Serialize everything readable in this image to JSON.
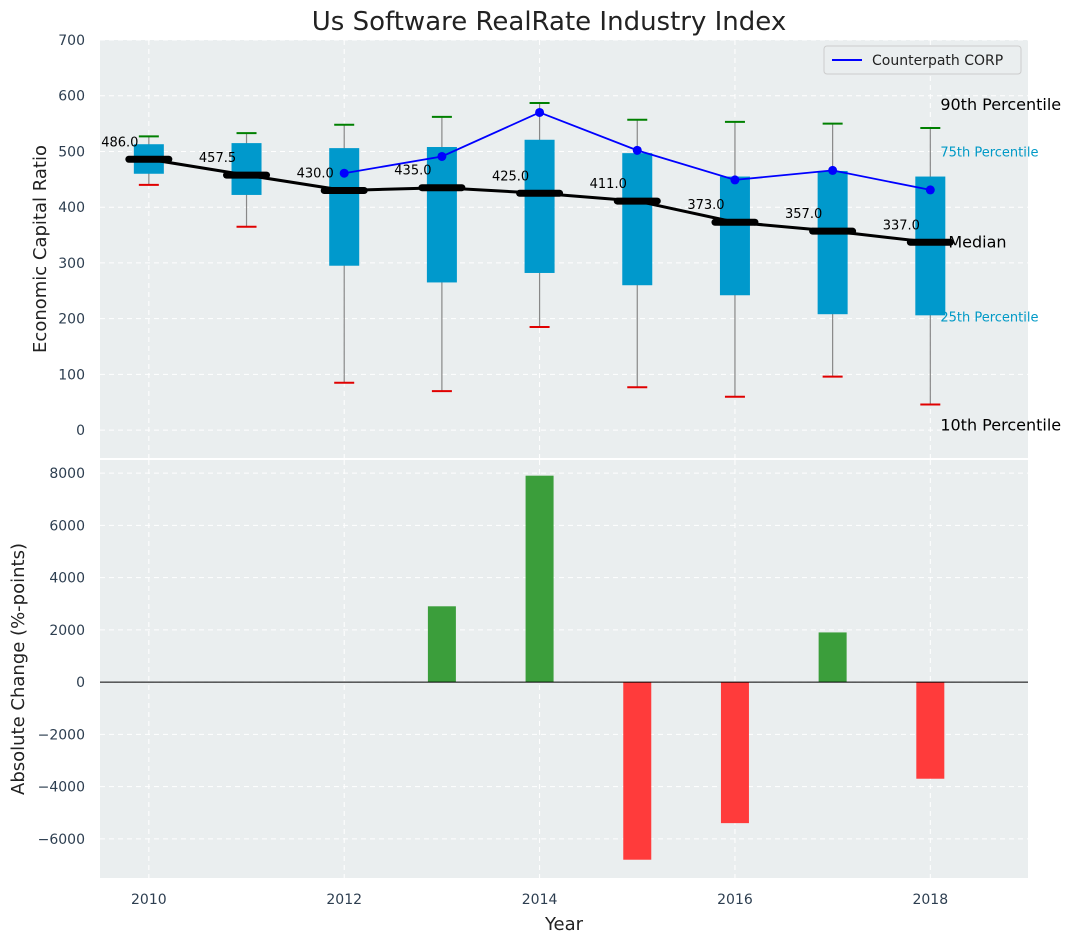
{
  "chart_data": [
    {
      "type": "box",
      "title": "Us Software RealRate Industry Index",
      "xlabel": "",
      "ylabel": "Economic Capital Ratio",
      "ylim": [
        -50,
        700
      ],
      "yticks": [
        0,
        100,
        200,
        300,
        400,
        500,
        600,
        700
      ],
      "grid": true,
      "years": [
        2010,
        2011,
        2012,
        2013,
        2014,
        2015,
        2016,
        2017,
        2018
      ],
      "p10": [
        440,
        365,
        85,
        70,
        185,
        77,
        60,
        96,
        46
      ],
      "p25": [
        460,
        422,
        295,
        265,
        282,
        260,
        242,
        208,
        206
      ],
      "median": [
        486,
        457.5,
        430,
        435,
        425,
        411,
        373,
        357,
        337
      ],
      "p75": [
        513,
        515,
        506,
        508,
        521,
        497,
        455,
        465,
        455
      ],
      "p90": [
        527,
        533,
        548,
        562,
        587,
        557,
        553,
        550,
        542
      ],
      "median_labels": [
        "486.0",
        "457.5",
        "430.0",
        "435.0",
        "425.0",
        "411.0",
        "373.0",
        "357.0",
        "337.0"
      ],
      "company": {
        "name": "Counterpath CORP",
        "years": [
          2012,
          2013,
          2014,
          2015,
          2016,
          2017,
          2018
        ],
        "values": [
          461,
          491,
          570,
          502,
          449,
          466,
          431
        ]
      },
      "legend": {
        "placement": "top-right",
        "entries": [
          "Counterpath CORP"
        ]
      },
      "percentile_labels": {
        "p90": "90th Percentile",
        "p75": "75th Percentile",
        "median": "Median",
        "p25": "25th Percentile",
        "p10": "10th Percentile"
      }
    },
    {
      "type": "bar",
      "xlabel": "Year",
      "ylabel": "Absolute Change (%-points)",
      "ylim": [
        -7500,
        8500
      ],
      "yticks": [
        -6000,
        -4000,
        -2000,
        0,
        2000,
        4000,
        6000,
        8000
      ],
      "ytick_labels": [
        "−6000",
        "−4000",
        "−2000",
        "0",
        "2000",
        "4000",
        "6000",
        "8000"
      ],
      "xlim": [
        2009.5,
        2019
      ],
      "xticks": [
        2010,
        2012,
        2014,
        2016,
        2018
      ],
      "categories": [
        2013,
        2014,
        2015,
        2016,
        2017,
        2018
      ],
      "values": [
        2900,
        7900,
        -6800,
        -5400,
        1900,
        -3700
      ],
      "positive_color": "#3b9e3b",
      "negative_color": "#ff3b3b",
      "grid": true
    }
  ],
  "colors": {
    "panel_bg": "#eaeeef",
    "box_fill": "#0099cc",
    "median_line": "#000000",
    "company_line": "#0000ff",
    "p90_cap": "#008000",
    "p10_cap": "#e00000",
    "whisker": "#888888"
  }
}
